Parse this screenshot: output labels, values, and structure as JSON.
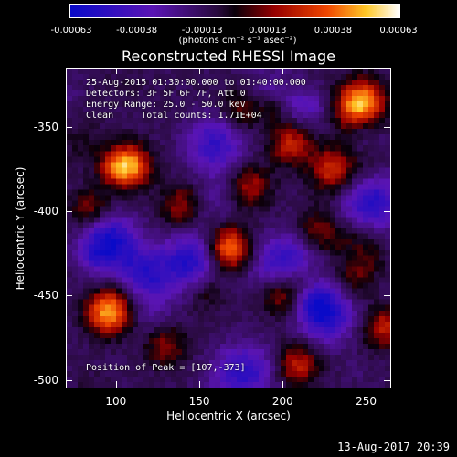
{
  "colorbar": {
    "ticks": [
      "-0.00063",
      "-0.00038",
      "-0.00013",
      "0.00013",
      "0.00038",
      "0.00063"
    ],
    "units": "(photons cm⁻² s⁻¹ asec⁻²)"
  },
  "title": "Reconstructed RHESSI Image",
  "info": {
    "line1": "25-Aug-2015 01:30:00.000 to 01:40:00.000",
    "line2": "Detectors: 3F 5F 6F 7F, Att 0",
    "line3": "Energy Range: 25.0 - 50.0 keV",
    "line4": "Clean     Total counts: 1.71E+04",
    "peak": "Position of Peak = [107,-373]"
  },
  "axes": {
    "xlabel": "Heliocentric X (arcsec)",
    "ylabel": "Heliocentric Y (arcsec)",
    "xticks": [
      "100",
      "150",
      "200",
      "250"
    ],
    "yticks": [
      "-350",
      "-400",
      "-450",
      "-500"
    ]
  },
  "footer": {
    "date": "13-Aug-2017 20:39"
  },
  "chart_data": {
    "type": "heatmap",
    "title": "Reconstructed RHESSI Image",
    "xlabel": "Heliocentric X (arcsec)",
    "ylabel": "Heliocentric Y (arcsec)",
    "xlim": [
      70,
      265
    ],
    "ylim": [
      -505,
      -315
    ],
    "colorscale": {
      "min": -0.00063,
      "max": 0.00063,
      "units": "(photons cm⁻² s⁻¹ asec⁻²)"
    },
    "sources": [
      {
        "x": 107,
        "y": -373,
        "intensity": 0.00063
      },
      {
        "x": 168,
        "y": -422,
        "intensity": 0.00055
      },
      {
        "x": 95,
        "y": -460,
        "intensity": 0.0006
      },
      {
        "x": 230,
        "y": -375,
        "intensity": 0.0004
      },
      {
        "x": 205,
        "y": -360,
        "intensity": 0.00035
      },
      {
        "x": 250,
        "y": -335,
        "intensity": 0.0004
      },
      {
        "x": 200,
        "y": -450,
        "intensity": 0.0003
      },
      {
        "x": 180,
        "y": -385,
        "intensity": 0.0003
      },
      {
        "x": 140,
        "y": -395,
        "intensity": 0.00025
      },
      {
        "x": 240,
        "y": -440,
        "intensity": 0.0003
      },
      {
        "x": 210,
        "y": -490,
        "intensity": 0.00028
      },
      {
        "x": 130,
        "y": -480,
        "intensity": 0.00025
      },
      {
        "x": 85,
        "y": -400,
        "intensity": 0.0003
      },
      {
        "x": 260,
        "y": -470,
        "intensity": 0.0003
      },
      {
        "x": 175,
        "y": -340,
        "intensity": 0.00025
      },
      {
        "x": 225,
        "y": -415,
        "intensity": 0.00022
      }
    ],
    "sinks": [
      {
        "x": 115,
        "y": -440,
        "intensity": -0.0005
      },
      {
        "x": 225,
        "y": -460,
        "intensity": -0.00045
      },
      {
        "x": 145,
        "y": -430,
        "intensity": -0.0004
      },
      {
        "x": 255,
        "y": -395,
        "intensity": -0.0004
      },
      {
        "x": 200,
        "y": -430,
        "intensity": -0.00035
      },
      {
        "x": 160,
        "y": -360,
        "intensity": -0.00035
      },
      {
        "x": 95,
        "y": -420,
        "intensity": -0.00035
      },
      {
        "x": 180,
        "y": -495,
        "intensity": -0.0003
      }
    ]
  }
}
